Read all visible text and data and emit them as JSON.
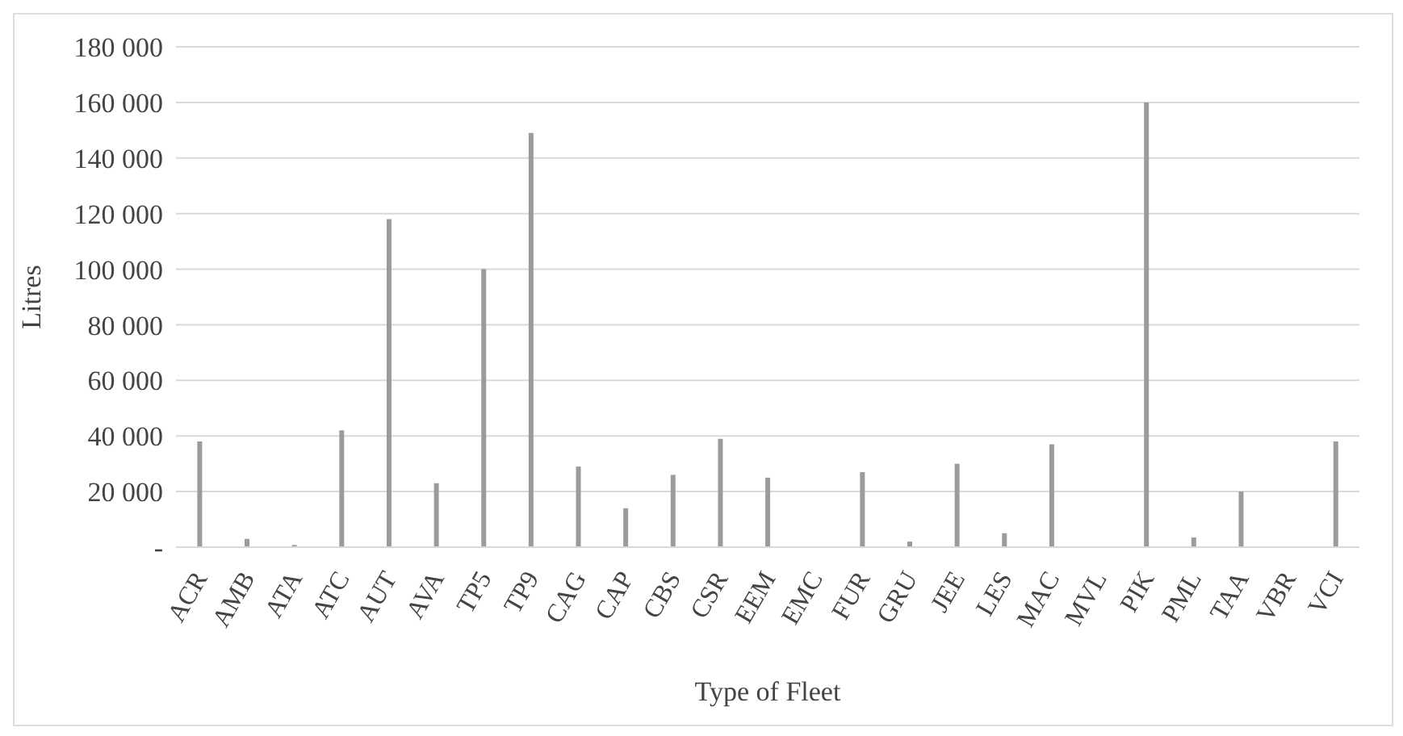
{
  "chart_data": {
    "type": "bar",
    "xlabel": "Type of Fleet",
    "ylabel": "Litres",
    "categories": [
      "ACR",
      "AMB",
      "ATA",
      "ATC",
      "AUT",
      "AVA",
      "TP5",
      "TP9",
      "CAG",
      "CAP",
      "CBS",
      "CSR",
      "EEM",
      "EMC",
      "FUR",
      "GRU",
      "JEE",
      "LES",
      "MAC",
      "MVL",
      "PIK",
      "PML",
      "TAA",
      "VBR",
      "VCI"
    ],
    "values": [
      38000,
      3000,
      800,
      42000,
      118000,
      23000,
      100000,
      149000,
      29000,
      14000,
      26000,
      39000,
      25000,
      0,
      27000,
      2000,
      30000,
      5000,
      37000,
      0,
      160000,
      3500,
      20000,
      0,
      38000
    ],
    "color": "#9b9b9b",
    "ylim": [
      0,
      180000
    ],
    "yticks": [
      {
        "value": 0,
        "label": "-"
      },
      {
        "value": 20000,
        "label": "20 000"
      },
      {
        "value": 40000,
        "label": "40 000"
      },
      {
        "value": 60000,
        "label": "60 000"
      },
      {
        "value": 80000,
        "label": "80 000"
      },
      {
        "value": 100000,
        "label": "100 000"
      },
      {
        "value": 120000,
        "label": "120 000"
      },
      {
        "value": 140000,
        "label": "140 000"
      },
      {
        "value": 160000,
        "label": "160 000"
      },
      {
        "value": 180000,
        "label": "180 000"
      }
    ],
    "grid": "y"
  }
}
